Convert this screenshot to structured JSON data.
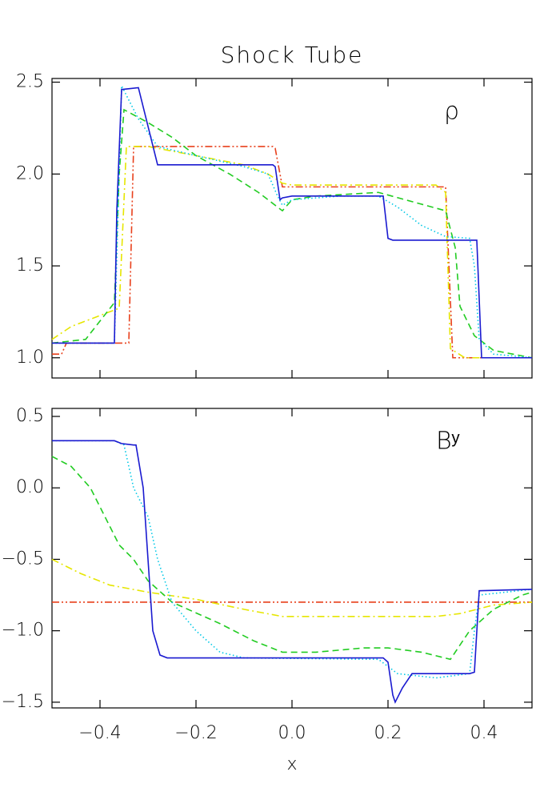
{
  "chart_data": [
    {
      "type": "line",
      "title": "Shock Tube",
      "annotation": "ρ",
      "xlim": [
        -0.5,
        0.5
      ],
      "xticks": [
        -0.4,
        -0.2,
        0,
        0.2,
        0.4
      ],
      "show_xtick_labels": false,
      "ylim": [
        0.89,
        2.52
      ],
      "yticks": [
        {
          "value": 1,
          "label": "1.0"
        },
        1.5,
        {
          "value": 2,
          "label": "2.0"
        },
        2.5
      ],
      "series": [
        {
          "color": "#e8401c",
          "style": "dashdotdot",
          "x": [
            -0.5,
            -0.48,
            -0.47,
            -0.34,
            -0.33,
            -0.04,
            -0.035,
            -0.02,
            0.32,
            0.335,
            0.5
          ],
          "values": [
            1.02,
            1.02,
            1.08,
            1.08,
            2.15,
            2.15,
            2.14,
            1.93,
            1.93,
            1.0,
            1.0
          ]
        },
        {
          "color": "#e6e600",
          "style": "dashdot",
          "x": [
            -0.5,
            -0.46,
            -0.4,
            -0.36,
            -0.345,
            -0.3,
            -0.2,
            -0.1,
            -0.05,
            -0.02,
            0,
            0.3,
            0.32,
            0.33,
            0.36,
            0.5
          ],
          "values": [
            1.1,
            1.17,
            1.23,
            1.27,
            2.15,
            2.15,
            2.1,
            2.05,
            2.0,
            1.95,
            1.94,
            1.94,
            1.9,
            1.05,
            1.0,
            1.0
          ]
        },
        {
          "color": "#22cc22",
          "style": "dashed",
          "x": [
            -0.5,
            -0.43,
            -0.37,
            -0.36,
            -0.35,
            -0.3,
            -0.25,
            -0.2,
            -0.13,
            -0.07,
            -0.03,
            -0.02,
            0,
            0.05,
            0.18,
            0.25,
            0.32,
            0.34,
            0.35,
            0.38,
            0.42,
            0.5
          ],
          "values": [
            1.08,
            1.1,
            1.3,
            2.0,
            2.35,
            2.28,
            2.2,
            2.1,
            2.0,
            1.9,
            1.82,
            1.8,
            1.86,
            1.88,
            1.9,
            1.85,
            1.8,
            1.6,
            1.28,
            1.12,
            1.04,
            1.0
          ]
        },
        {
          "color": "#00c8e6",
          "style": "dotted",
          "x": [
            -0.5,
            -0.37,
            -0.355,
            -0.32,
            -0.28,
            -0.2,
            -0.1,
            -0.05,
            -0.03,
            -0.02,
            0,
            0.1,
            0.18,
            0.22,
            0.27,
            0.32,
            0.37,
            0.38,
            0.39,
            0.42,
            0.5
          ],
          "values": [
            1.08,
            1.08,
            2.48,
            2.3,
            2.15,
            2.1,
            2.04,
            2.0,
            1.88,
            1.83,
            1.86,
            1.88,
            1.88,
            1.82,
            1.72,
            1.66,
            1.65,
            1.5,
            1.1,
            1.02,
            1.0
          ]
        },
        {
          "color": "#1a1ad0",
          "style": "solid",
          "x": [
            -0.5,
            -0.37,
            -0.365,
            -0.355,
            -0.32,
            -0.28,
            -0.04,
            -0.035,
            -0.025,
            -0.02,
            0,
            0.19,
            0.2,
            0.21,
            0.385,
            0.395,
            0.5
          ],
          "values": [
            1.08,
            1.08,
            1.8,
            2.46,
            2.47,
            2.05,
            2.05,
            2.04,
            1.86,
            1.87,
            1.88,
            1.88,
            1.65,
            1.64,
            1.64,
            1.0,
            1.0
          ]
        }
      ]
    },
    {
      "type": "line",
      "annotation": "Bʸ",
      "xlabel": "x",
      "xlim": [
        -0.5,
        0.5
      ],
      "xticks": [
        {
          "value": -0.4,
          "label": "−0.4"
        },
        {
          "value": -0.2,
          "label": "−0.2"
        },
        {
          "value": 0,
          "label": "0.0"
        },
        0.2,
        0.4
      ],
      "show_xtick_labels": true,
      "ylim": [
        -1.54,
        0.556
      ],
      "yticks": [
        {
          "value": -1.5,
          "label": "−1.5"
        },
        {
          "value": -1,
          "label": "−1.0"
        },
        {
          "value": -0.5,
          "label": "−0.5"
        },
        {
          "value": 0,
          "label": "0.0"
        },
        0.5
      ],
      "series": [
        {
          "color": "#e8401c",
          "style": "dashdotdot",
          "x": [
            -0.5,
            0.5
          ],
          "values": [
            -0.8,
            -0.8
          ]
        },
        {
          "color": "#e6e600",
          "style": "dashdot",
          "x": [
            -0.5,
            -0.44,
            -0.38,
            -0.3,
            -0.2,
            -0.1,
            -0.02,
            0.1,
            0.3,
            0.35,
            0.42,
            0.5
          ],
          "values": [
            -0.5,
            -0.6,
            -0.68,
            -0.73,
            -0.78,
            -0.85,
            -0.9,
            -0.9,
            -0.9,
            -0.88,
            -0.82,
            -0.8
          ]
        },
        {
          "color": "#22cc22",
          "style": "dashed",
          "x": [
            -0.5,
            -0.46,
            -0.42,
            -0.39,
            -0.36,
            -0.33,
            -0.3,
            -0.25,
            -0.15,
            -0.08,
            -0.02,
            0.05,
            0.15,
            0.2,
            0.27,
            0.33,
            0.37,
            0.42,
            0.48,
            0.5
          ],
          "values": [
            0.22,
            0.15,
            0.0,
            -0.2,
            -0.4,
            -0.5,
            -0.65,
            -0.8,
            -0.95,
            -1.07,
            -1.15,
            -1.15,
            -1.12,
            -1.12,
            -1.15,
            -1.2,
            -1.0,
            -0.85,
            -0.75,
            -0.73
          ]
        },
        {
          "color": "#00c8e6",
          "style": "dotted",
          "x": [
            -0.5,
            -0.37,
            -0.35,
            -0.33,
            -0.3,
            -0.28,
            -0.25,
            -0.2,
            -0.15,
            -0.1,
            0.18,
            0.2,
            0.22,
            0.3,
            0.37,
            0.38,
            0.39,
            0.5
          ],
          "values": [
            0.33,
            0.33,
            0.3,
            0.0,
            -0.2,
            -0.5,
            -0.8,
            -1.0,
            -1.15,
            -1.19,
            -1.2,
            -1.25,
            -1.3,
            -1.33,
            -1.3,
            -1.0,
            -0.75,
            -0.71
          ]
        },
        {
          "color": "#1a1ad0",
          "style": "solid",
          "x": [
            -0.5,
            -0.37,
            -0.355,
            -0.33,
            -0.325,
            -0.31,
            -0.3,
            -0.29,
            -0.275,
            -0.26,
            0.19,
            0.2,
            0.21,
            0.215,
            0.23,
            0.25,
            0.37,
            0.38,
            0.39,
            0.5
          ],
          "values": [
            0.33,
            0.33,
            0.31,
            0.3,
            0.3,
            0.0,
            -0.5,
            -1.0,
            -1.17,
            -1.19,
            -1.19,
            -1.22,
            -1.45,
            -1.5,
            -1.4,
            -1.3,
            -1.3,
            -1.29,
            -0.72,
            -0.71
          ]
        }
      ]
    }
  ]
}
